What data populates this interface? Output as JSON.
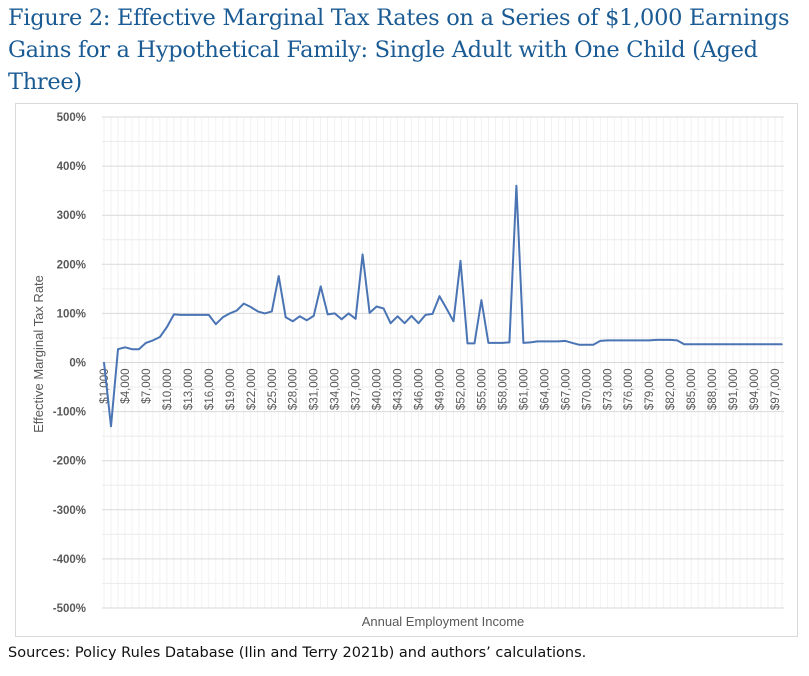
{
  "chart_data": {
    "type": "line",
    "title": "Figure 2: Effective Marginal Tax Rates on a Series of $1,000 Earnings Gains for a Hypothetical Family: Single Adult with One Child (Aged Three)",
    "xlabel": "Annual Employment Income",
    "ylabel": "Effective Marginal Tax Rate",
    "ylim": [
      -500,
      500
    ],
    "yticks": [
      "-500%",
      "-400%",
      "-300%",
      "-200%",
      "-100%",
      "0%",
      "100%",
      "200%",
      "300%",
      "400%",
      "500%"
    ],
    "ytick_values": [
      -500,
      -400,
      -300,
      -200,
      -100,
      0,
      100,
      200,
      300,
      400,
      500
    ],
    "x_start": 1000,
    "x_step": 1000,
    "xtick_labels": [
      "$1,000",
      "$4,000",
      "$7,000",
      "$10,000",
      "$13,000",
      "$16,000",
      "$19,000",
      "$22,000",
      "$25,000",
      "$28,000",
      "$31,000",
      "$34,000",
      "$37,000",
      "$40,000",
      "$43,000",
      "$46,000",
      "$49,000",
      "$52,000",
      "$55,000",
      "$58,000",
      "$61,000",
      "$64,000",
      "$67,000",
      "$70,000",
      "$73,000",
      "$76,000",
      "$79,000",
      "$82,000",
      "$85,000",
      "$88,000",
      "$91,000",
      "$94,000",
      "$97,000"
    ],
    "grid": true,
    "series": [
      {
        "name": "Effective Marginal Tax Rate",
        "color": "#4a74b4",
        "values": [
          0,
          -130,
          27,
          31,
          27,
          27,
          40,
          45,
          52,
          72,
          98,
          97,
          97,
          97,
          97,
          97,
          78,
          92,
          100,
          106,
          120,
          113,
          104,
          100,
          104,
          176,
          92,
          84,
          94,
          86,
          95,
          155,
          98,
          100,
          88,
          100,
          89,
          220,
          101,
          114,
          110,
          80,
          94,
          80,
          95,
          80,
          97,
          99,
          135,
          110,
          84,
          207,
          39,
          39,
          127,
          40,
          40,
          40,
          41,
          360,
          40,
          41,
          43,
          43,
          43,
          43,
          44,
          40,
          36,
          36,
          36,
          44,
          45,
          45,
          45,
          45,
          45,
          45,
          45,
          46,
          46,
          46,
          45,
          37,
          37,
          37,
          37,
          37,
          37,
          37,
          37,
          37,
          37,
          37,
          37,
          37,
          37,
          37
        ]
      }
    ]
  },
  "source": "Sources: Policy Rules Database (Ilin and Terry 2021b) and authors’ calculations."
}
